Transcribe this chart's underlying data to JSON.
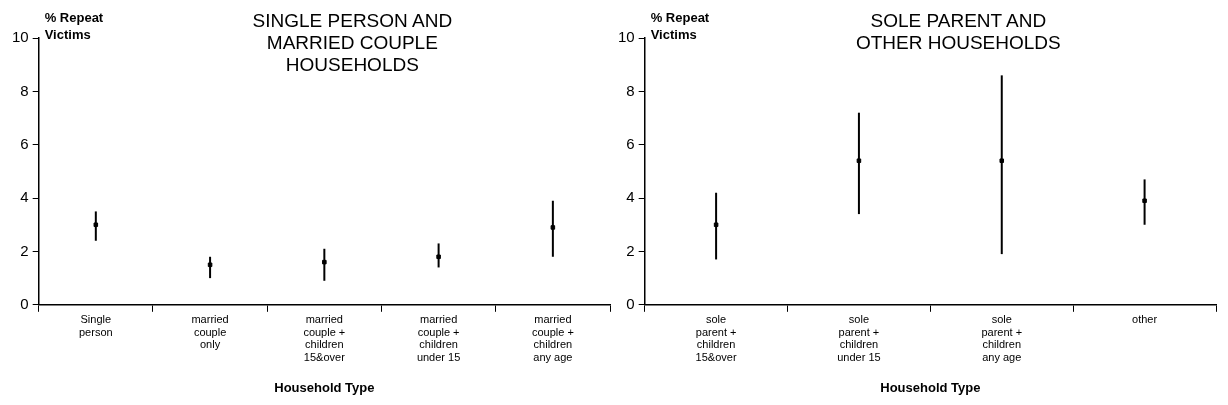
{
  "chart_data": [
    {
      "type": "scatter",
      "title": "SINGLE PERSON AND MARRIED COUPLE HOUSEHOLDS",
      "xlabel": "Household Type",
      "ylabel": "% Repeat Victims",
      "categories": [
        "Single person",
        "married couple only",
        "married couple + children 15&over",
        "married couple + children under 15",
        "married couple + children any age"
      ],
      "values": [
        3.0,
        1.5,
        1.6,
        1.8,
        2.9
      ],
      "color": "#000000",
      "errors": [
        [
          2.4,
          3.5
        ],
        [
          1.0,
          1.8
        ],
        [
          0.9,
          2.1
        ],
        [
          1.4,
          2.3
        ],
        [
          1.8,
          3.9
        ]
      ],
      "ylim": [
        0,
        10
      ],
      "yticks": [
        0,
        2,
        4,
        6,
        8,
        10
      ],
      "grid": false,
      "legend": false
    },
    {
      "type": "scatter",
      "title": "SOLE PARENT AND OTHER HOUSEHOLDS",
      "xlabel": "Household Type",
      "ylabel": "% Repeat Victims",
      "categories": [
        "sole parent + children 15&over",
        "sole parent + children under 15",
        "sole parent + children any age",
        "other"
      ],
      "values": [
        3.0,
        5.4,
        5.4,
        3.9
      ],
      "color": "#000000",
      "errors": [
        [
          1.7,
          4.2
        ],
        [
          3.4,
          7.2
        ],
        [
          1.9,
          8.6
        ],
        [
          3.0,
          4.7
        ]
      ],
      "ylim": [
        0,
        10
      ],
      "yticks": [
        0,
        2,
        4,
        6,
        8,
        10
      ],
      "grid": false,
      "legend": false
    }
  ]
}
